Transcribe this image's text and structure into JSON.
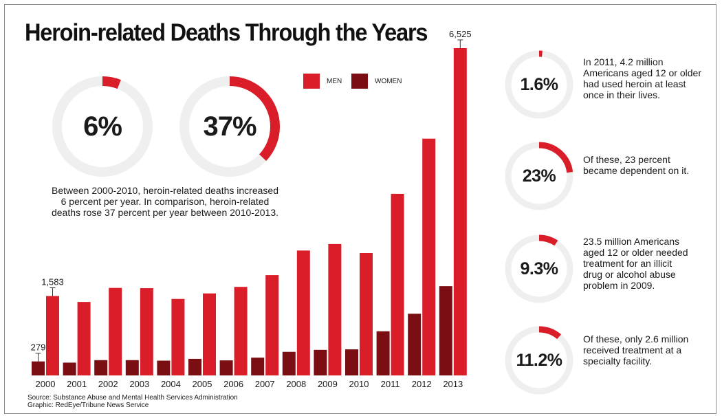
{
  "title": "Heroin-related Deaths Through the Years",
  "colors": {
    "men": "#d91e2a",
    "women": "#7a0e12",
    "ring": "#efefef"
  },
  "legend": {
    "men": "MEN",
    "women": "WOMEN"
  },
  "growth": {
    "rate_2000_2010": {
      "value": 6,
      "label": "6%"
    },
    "rate_2010_2013": {
      "value": 37,
      "label": "37%"
    },
    "caption_lines": [
      "Between 2000-2010, heroin-related deaths increased",
      "6 percent per year. In comparison, heroin-related",
      "deaths rose 37 percent per year between 2010-2013."
    ]
  },
  "facts": [
    {
      "value": 1.6,
      "label": "1.6%",
      "lines": [
        "In 2011, 4.2 million",
        "Americans aged 12 or older",
        "had used heroin at least",
        "once in their lives."
      ]
    },
    {
      "value": 23,
      "label": "23%",
      "lines": [
        "Of these, 23 percent",
        "became dependent on it."
      ]
    },
    {
      "value": 9.3,
      "label": "9.3%",
      "lines": [
        "23.5 million Americans",
        "aged 12 or older needed",
        "treatment for an illicit",
        "drug or alcohol abuse",
        "problem in 2009."
      ]
    },
    {
      "value": 11.2,
      "label": "11.2%",
      "lines": [
        "Of these, only 2.6 million",
        "received treatment at a",
        "specialty facility."
      ]
    }
  ],
  "chart_data": {
    "type": "bar",
    "categories": [
      "2000",
      "2001",
      "2002",
      "2003",
      "2004",
      "2005",
      "2006",
      "2007",
      "2008",
      "2009",
      "2010",
      "2011",
      "2012",
      "2013"
    ],
    "series": [
      {
        "name": "WOMEN",
        "values": [
          279,
          255,
          305,
          305,
          295,
          330,
          300,
          355,
          470,
          510,
          520,
          880,
          1230,
          1780
        ]
      },
      {
        "name": "MEN",
        "values": [
          1583,
          1465,
          1745,
          1740,
          1525,
          1635,
          1765,
          2000,
          2490,
          2620,
          2440,
          3620,
          4720,
          6525
        ]
      }
    ],
    "data_labels": [
      {
        "category": "2000",
        "series": "WOMEN",
        "text": "279"
      },
      {
        "category": "2000",
        "series": "MEN",
        "text": "1,583"
      },
      {
        "category": "2013",
        "series": "MEN",
        "text": "6,525"
      }
    ],
    "ylim": [
      0,
      6525
    ],
    "grid": false,
    "legend_position": "top-right"
  },
  "source_lines": [
    "Source: Substance Abuse and Mental Health Services Administration",
    "Graphic: RedEye/Tribune News Service"
  ]
}
